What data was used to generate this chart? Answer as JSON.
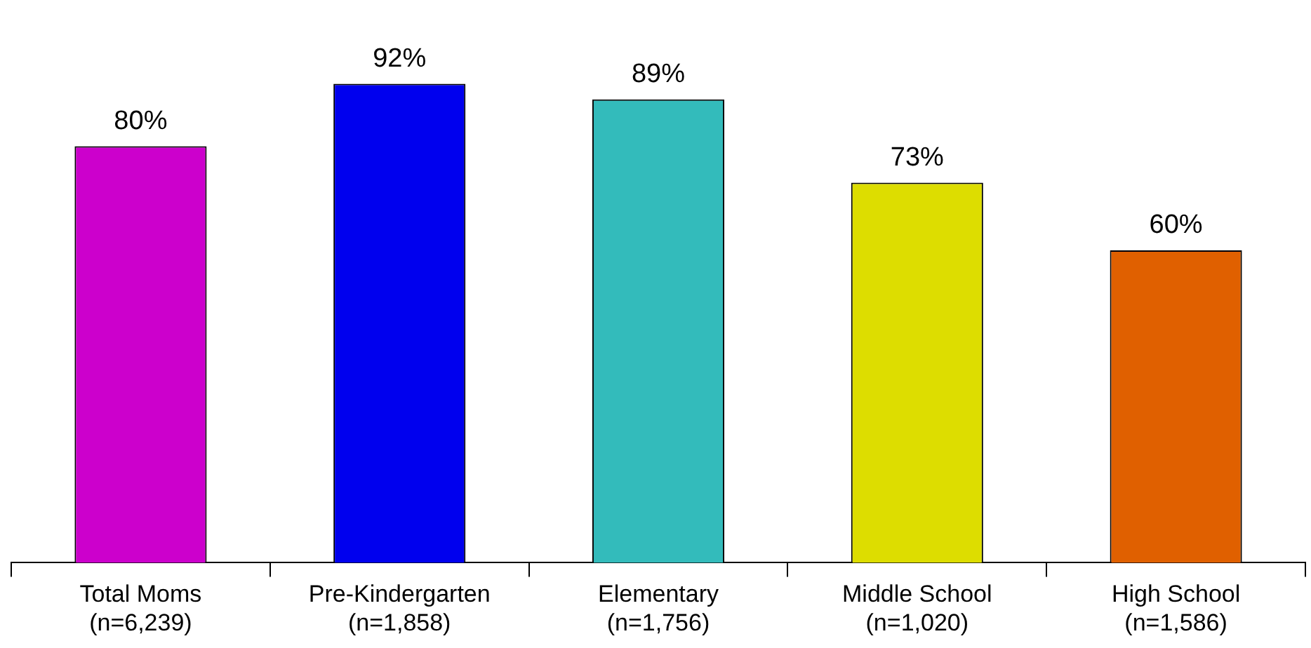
{
  "chart_data": {
    "type": "bar",
    "categories": [
      "Total Moms\n(n=6,239)",
      "Pre-Kindergarten\n(n=1,858)",
      "Elementary\n(n=1,756)",
      "Middle School\n(n=1,020)",
      "High School\n(n=1,586)"
    ],
    "values": [
      80,
      92,
      89,
      73,
      60
    ],
    "colors": [
      "#cc00cc",
      "#0000ee",
      "#33bbbb",
      "#dddd00",
      "#e06000"
    ],
    "value_labels": [
      "80%",
      "92%",
      "89%",
      "73%",
      "60%"
    ],
    "tick_labels": "x",
    "grid": false,
    "legend": false
  }
}
